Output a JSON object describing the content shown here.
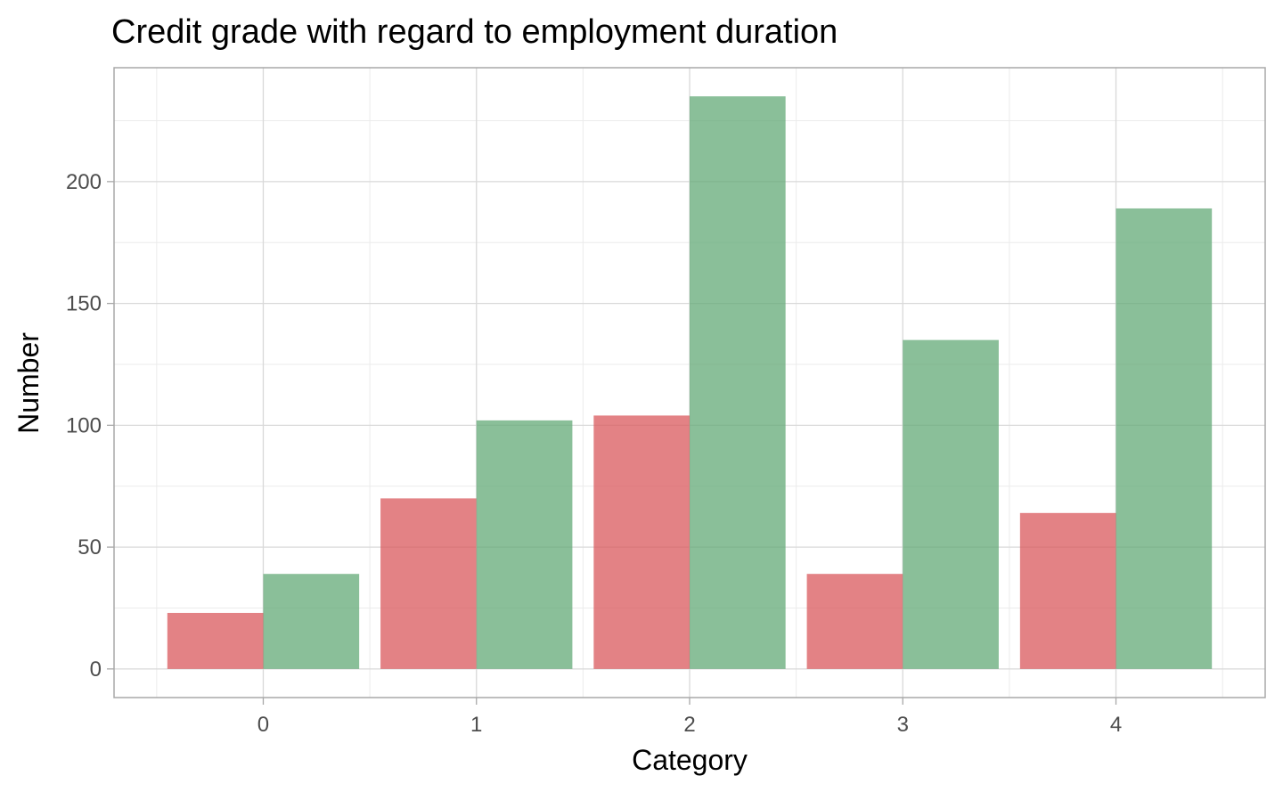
{
  "chart_data": {
    "type": "bar",
    "title": "Credit grade with regard to employment duration",
    "xlabel": "Category",
    "ylabel": "Number",
    "categories": [
      "0",
      "1",
      "2",
      "3",
      "4"
    ],
    "series": [
      {
        "values": [
          23,
          70,
          104,
          39,
          64
        ],
        "color": "#d9585c"
      },
      {
        "values": [
          39,
          102,
          235,
          135,
          189
        ],
        "color": "#63a977"
      }
    ],
    "y_ticks": [
      0,
      50,
      100,
      150,
      200
    ],
    "ylim": [
      -11.75,
      246.75
    ],
    "grid": true,
    "legend": "none"
  }
}
